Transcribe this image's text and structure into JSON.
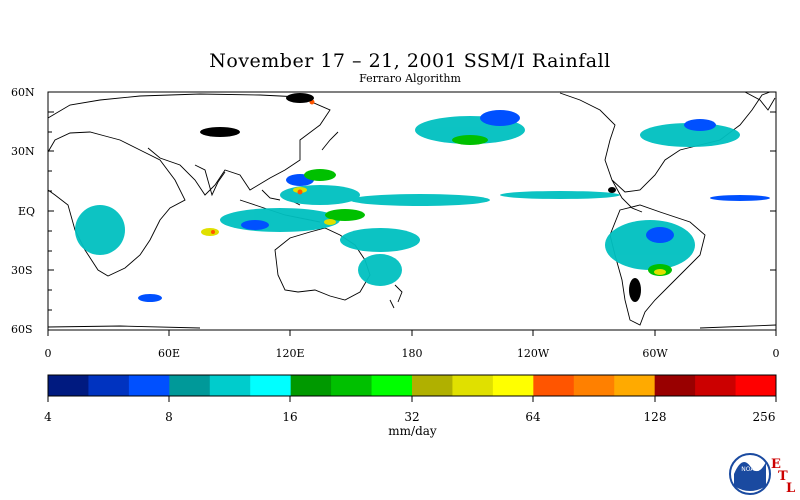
{
  "title": "November 17 – 21, 2001 SSM/I Rainfall",
  "subtitle": "Ferraro Algorithm",
  "lat_labels": [
    "60N",
    "30N",
    "EQ",
    "30S",
    "60S"
  ],
  "lon_labels": [
    "0",
    "60E",
    "120E",
    "180",
    "120W",
    "60W",
    "0"
  ],
  "colorbar": {
    "units": "mm/day",
    "tick_labels": [
      "4",
      "8",
      "16",
      "32",
      "64",
      "128",
      "256"
    ],
    "colors": [
      "#001a80",
      "#0033c0",
      "#0050ff",
      "#009999",
      "#00cccc",
      "#00ffff",
      "#009900",
      "#00c000",
      "#00ff00",
      "#b0b000",
      "#e0e000",
      "#ffff00",
      "#ff5500",
      "#ff8000",
      "#ffaa00",
      "#990000",
      "#cc0000",
      "#ff0000"
    ]
  },
  "logo": {
    "org": "NOAA",
    "letters": [
      "E",
      "T",
      "L"
    ]
  }
}
